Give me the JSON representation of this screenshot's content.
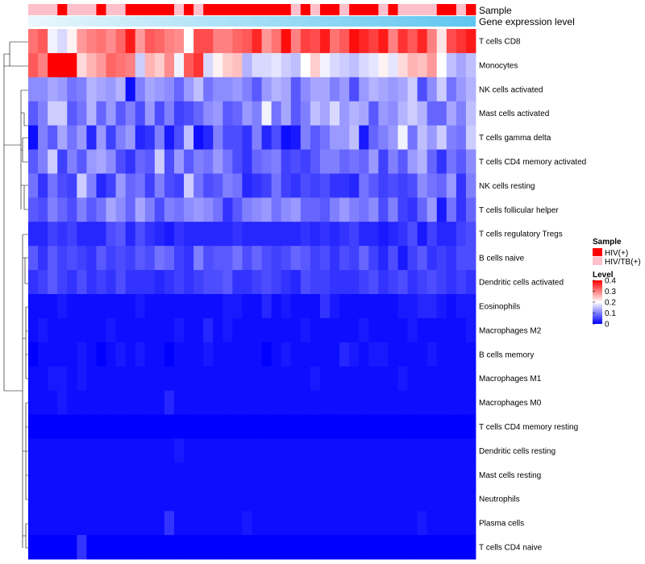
{
  "chart_data": {
    "type": "heatmap",
    "rows": [
      "T cells CD8",
      "Monocytes",
      "NK cells activated",
      "Mast cells activated",
      "T cells gamma delta",
      "T cells CD4 memory activated",
      "NK cells resting",
      "T cells follicular helper",
      "T cells regulatory  Tregs",
      "B cells naive",
      "Dendritic cells activated",
      "Eosinophils",
      "Macrophages M2",
      "B cells memory",
      "Macrophages M1",
      "Macrophages M0",
      "T cells CD4 memory resting",
      "Dendritic cells resting",
      "Mast cells resting",
      "Neutrophils",
      "Plasma cells",
      "T cells CD4 naive"
    ],
    "n_columns": 46,
    "annotations": [
      {
        "name": "Sample",
        "values_note": "per-column sample group"
      },
      {
        "name": "Gene expression level",
        "values_note": "per-column gradient light to sky blue"
      }
    ],
    "sample_groups": [
      "HIV(+)",
      "HIV/TB(+)"
    ],
    "sample_assignment": [
      1,
      1,
      1,
      0,
      1,
      1,
      1,
      0,
      1,
      1,
      0,
      0,
      0,
      0,
      0,
      1,
      0,
      1,
      0,
      0,
      0,
      0,
      0,
      0,
      0,
      0,
      0,
      1,
      0,
      1,
      0,
      0,
      1,
      0,
      0,
      0,
      1,
      0,
      1,
      1,
      1,
      1,
      0,
      0,
      1,
      0
    ],
    "legend_sample": {
      "title": "Sample",
      "items": [
        "HIV(+)",
        "HIV/TB(+)"
      ],
      "colors": [
        "#ff0000",
        "#ffc0cb"
      ]
    },
    "legend_level": {
      "title": "Level",
      "ticks": [
        "0.4",
        "0.3",
        "0.2",
        "0.1",
        "0"
      ],
      "tick_values": [
        0.4,
        0.3,
        0.2,
        0.1,
        0
      ],
      "range": [
        0,
        0.4
      ],
      "colors": [
        "#0000ff",
        "#ffffff",
        "#ff0000"
      ]
    },
    "values": [
      [
        0.31,
        0.33,
        0.19,
        0.17,
        0.21,
        0.28,
        0.3,
        0.31,
        0.29,
        0.32,
        0.38,
        0.28,
        0.33,
        0.32,
        0.3,
        0.29,
        0.2,
        0.34,
        0.34,
        0.3,
        0.3,
        0.32,
        0.33,
        0.37,
        0.28,
        0.31,
        0.39,
        0.3,
        0.35,
        0.34,
        0.38,
        0.31,
        0.33,
        0.39,
        0.37,
        0.35,
        0.38,
        0.3,
        0.36,
        0.33,
        0.37,
        0.3,
        0.22,
        0.34,
        0.36,
        0.38
      ],
      [
        0.33,
        0.3,
        0.4,
        0.4,
        0.4,
        0.23,
        0.26,
        0.28,
        0.32,
        0.31,
        0.3,
        0.16,
        0.26,
        0.24,
        0.29,
        0.19,
        0.33,
        0.36,
        0.17,
        0.21,
        0.24,
        0.25,
        0.14,
        0.17,
        0.17,
        0.18,
        0.16,
        0.15,
        0.2,
        0.24,
        0.19,
        0.17,
        0.16,
        0.15,
        0.17,
        0.18,
        0.21,
        0.18,
        0.23,
        0.26,
        0.25,
        0.28,
        0.2,
        0.15,
        0.13,
        0.15
      ],
      [
        0.11,
        0.11,
        0.13,
        0.12,
        0.09,
        0.1,
        0.14,
        0.13,
        0.12,
        0.14,
        0.01,
        0.1,
        0.13,
        0.12,
        0.11,
        0.08,
        0.12,
        0.15,
        0.09,
        0.11,
        0.11,
        0.12,
        0.1,
        0.07,
        0.12,
        0.14,
        0.13,
        0.07,
        0.11,
        0.13,
        0.13,
        0.1,
        0.12,
        0.06,
        0.12,
        0.14,
        0.13,
        0.12,
        0.13,
        0.16,
        0.06,
        0.11,
        0.16,
        0.09,
        0.12,
        0.14
      ],
      [
        0.07,
        0.1,
        0.16,
        0.16,
        0.07,
        0.09,
        0.14,
        0.08,
        0.12,
        0.07,
        0.1,
        0.06,
        0.12,
        0.06,
        0.1,
        0.05,
        0.06,
        0.08,
        0.11,
        0.12,
        0.07,
        0.08,
        0.12,
        0.1,
        0.19,
        0.09,
        0.13,
        0.07,
        0.1,
        0.15,
        0.13,
        0.17,
        0.12,
        0.14,
        0.13,
        0.07,
        0.12,
        0.11,
        0.14,
        0.16,
        0.14,
        0.08,
        0.08,
        0.13,
        0.1,
        0.15
      ],
      [
        0.01,
        0.1,
        0.07,
        0.13,
        0.09,
        0.12,
        0.03,
        0.12,
        0.05,
        0.1,
        0.12,
        0.03,
        0.04,
        0.1,
        0.02,
        0.06,
        0.15,
        0.01,
        0.03,
        0.1,
        0.06,
        0.06,
        0.04,
        0.1,
        0.03,
        0.06,
        0.01,
        0.02,
        0.1,
        0.07,
        0.09,
        0.12,
        0.12,
        0.15,
        0.02,
        0.08,
        0.1,
        0.12,
        0.19,
        0.09,
        0.15,
        0.12,
        0.16,
        0.1,
        0.09,
        0.16
      ],
      [
        0.07,
        0.1,
        0.16,
        0.05,
        0.1,
        0.07,
        0.12,
        0.13,
        0.11,
        0.06,
        0.04,
        0.08,
        0.07,
        0.16,
        0.06,
        0.12,
        0.07,
        0.1,
        0.09,
        0.12,
        0.09,
        0.06,
        0.04,
        0.08,
        0.09,
        0.1,
        0.05,
        0.06,
        0.05,
        0.07,
        0.1,
        0.1,
        0.08,
        0.09,
        0.08,
        0.12,
        0.05,
        0.1,
        0.07,
        0.12,
        0.14,
        0.08,
        0.04,
        0.09,
        0.07,
        0.11
      ],
      [
        0.09,
        0.04,
        0.09,
        0.06,
        0.05,
        0.16,
        0.1,
        0.03,
        0.05,
        0.12,
        0.08,
        0.09,
        0.05,
        0.1,
        0.06,
        0.05,
        0.16,
        0.09,
        0.06,
        0.07,
        0.1,
        0.09,
        0.03,
        0.04,
        0.05,
        0.09,
        0.05,
        0.04,
        0.06,
        0.05,
        0.06,
        0.04,
        0.04,
        0.03,
        0.09,
        0.07,
        0.05,
        0.06,
        0.05,
        0.06,
        0.11,
        0.09,
        0.08,
        0.12,
        0.04,
        0.1
      ],
      [
        0.07,
        0.06,
        0.1,
        0.08,
        0.06,
        0.1,
        0.07,
        0.09,
        0.13,
        0.11,
        0.08,
        0.13,
        0.1,
        0.06,
        0.1,
        0.09,
        0.11,
        0.12,
        0.11,
        0.09,
        0.04,
        0.07,
        0.1,
        0.11,
        0.12,
        0.09,
        0.11,
        0.12,
        0.08,
        0.08,
        0.07,
        0.1,
        0.12,
        0.1,
        0.09,
        0.11,
        0.06,
        0.1,
        0.05,
        0.04,
        0.08,
        0.12,
        0.02,
        0.09,
        0.04,
        0.08
      ],
      [
        0.03,
        0.03,
        0.05,
        0.04,
        0.05,
        0.03,
        0.03,
        0.03,
        0.06,
        0.07,
        0.03,
        0.06,
        0.04,
        0.03,
        0.02,
        0.04,
        0.03,
        0.03,
        0.03,
        0.03,
        0.03,
        0.04,
        0.03,
        0.03,
        0.03,
        0.03,
        0.03,
        0.03,
        0.04,
        0.03,
        0.04,
        0.03,
        0.04,
        0.05,
        0.03,
        0.03,
        0.02,
        0.03,
        0.04,
        0.06,
        0.02,
        0.05,
        0.03,
        0.03,
        0.05,
        0.06
      ],
      [
        0.07,
        0.04,
        0.07,
        0.05,
        0.06,
        0.05,
        0.04,
        0.07,
        0.05,
        0.06,
        0.05,
        0.07,
        0.06,
        0.09,
        0.08,
        0.05,
        0.04,
        0.1,
        0.06,
        0.07,
        0.07,
        0.09,
        0.06,
        0.08,
        0.06,
        0.05,
        0.06,
        0.08,
        0.07,
        0.05,
        0.06,
        0.04,
        0.06,
        0.05,
        0.08,
        0.05,
        0.03,
        0.06,
        0.02,
        0.05,
        0.07,
        0.04,
        0.05,
        0.04,
        0.06,
        0.06
      ],
      [
        0.04,
        0.05,
        0.07,
        0.05,
        0.04,
        0.06,
        0.04,
        0.05,
        0.04,
        0.06,
        0.04,
        0.04,
        0.04,
        0.03,
        0.04,
        0.05,
        0.04,
        0.05,
        0.06,
        0.06,
        0.07,
        0.04,
        0.04,
        0.05,
        0.06,
        0.05,
        0.04,
        0.03,
        0.06,
        0.05,
        0.05,
        0.04,
        0.04,
        0.04,
        0.05,
        0.06,
        0.04,
        0.05,
        0.06,
        0.04,
        0.05,
        0.06,
        0.05,
        0.04,
        0.05,
        0.04
      ],
      [
        0.01,
        0.01,
        0.01,
        0.02,
        0.01,
        0.01,
        0.01,
        0.01,
        0.01,
        0.01,
        0.01,
        0.02,
        0.01,
        0.01,
        0.01,
        0.01,
        0.01,
        0.01,
        0.01,
        0.01,
        0.02,
        0.02,
        0.01,
        0.01,
        0.03,
        0.01,
        0.02,
        0.01,
        0.01,
        0.01,
        0.04,
        0.02,
        0.01,
        0.01,
        0.01,
        0.01,
        0.01,
        0.01,
        0.02,
        0.02,
        0.03,
        0.03,
        0.02,
        0.01,
        0.02,
        0.02
      ],
      [
        0.01,
        0.02,
        0.01,
        0.01,
        0.01,
        0.01,
        0.01,
        0.01,
        0.02,
        0.01,
        0.01,
        0.01,
        0.01,
        0.01,
        0.01,
        0.02,
        0.01,
        0.01,
        0.03,
        0.01,
        0.02,
        0.01,
        0.01,
        0.01,
        0.01,
        0.01,
        0.01,
        0.01,
        0.02,
        0.01,
        0.01,
        0.01,
        0.01,
        0.01,
        0.02,
        0.01,
        0.01,
        0.01,
        0.01,
        0.02,
        0.01,
        0.01,
        0.01,
        0.01,
        0.01,
        0.02
      ],
      [
        0.0,
        0.01,
        0.01,
        0.01,
        0.01,
        0.02,
        0.01,
        0.0,
        0.01,
        0.02,
        0.01,
        0.02,
        0.01,
        0.01,
        0.0,
        0.01,
        0.01,
        0.01,
        0.02,
        0.01,
        0.01,
        0.01,
        0.01,
        0.01,
        0.0,
        0.01,
        0.02,
        0.01,
        0.01,
        0.01,
        0.01,
        0.01,
        0.03,
        0.02,
        0.01,
        0.02,
        0.02,
        0.01,
        0.01,
        0.01,
        0.01,
        0.02,
        0.01,
        0.01,
        0.01,
        0.01
      ],
      [
        0.01,
        0.01,
        0.02,
        0.02,
        0.01,
        0.02,
        0.01,
        0.01,
        0.01,
        0.01,
        0.01,
        0.01,
        0.01,
        0.01,
        0.01,
        0.01,
        0.01,
        0.01,
        0.01,
        0.01,
        0.01,
        0.01,
        0.01,
        0.01,
        0.01,
        0.01,
        0.01,
        0.01,
        0.01,
        0.02,
        0.01,
        0.01,
        0.01,
        0.01,
        0.01,
        0.01,
        0.01,
        0.01,
        0.02,
        0.01,
        0.01,
        0.01,
        0.01,
        0.01,
        0.01,
        0.01
      ],
      [
        0.01,
        0.01,
        0.01,
        0.02,
        0.01,
        0.01,
        0.01,
        0.01,
        0.01,
        0.01,
        0.01,
        0.01,
        0.01,
        0.01,
        0.03,
        0.01,
        0.01,
        0.01,
        0.01,
        0.01,
        0.01,
        0.01,
        0.01,
        0.01,
        0.01,
        0.01,
        0.01,
        0.01,
        0.01,
        0.01,
        0.01,
        0.01,
        0.01,
        0.01,
        0.01,
        0.01,
        0.01,
        0.01,
        0.01,
        0.01,
        0.01,
        0.01,
        0.01,
        0.01,
        0.01,
        0.01
      ],
      [
        0.0,
        0.0,
        0.0,
        0.0,
        0.0,
        0.0,
        0.0,
        0.0,
        0.0,
        0.0,
        0.0,
        0.0,
        0.0,
        0.0,
        0.0,
        0.0,
        0.0,
        0.0,
        0.0,
        0.0,
        0.0,
        0.0,
        0.0,
        0.0,
        0.0,
        0.0,
        0.0,
        0.0,
        0.0,
        0.0,
        0.0,
        0.0,
        0.0,
        0.0,
        0.0,
        0.0,
        0.0,
        0.0,
        0.0,
        0.0,
        0.0,
        0.0,
        0.0,
        0.0,
        0.0,
        0.0
      ],
      [
        0.01,
        0.01,
        0.01,
        0.01,
        0.01,
        0.01,
        0.01,
        0.01,
        0.01,
        0.01,
        0.01,
        0.01,
        0.01,
        0.01,
        0.01,
        0.02,
        0.01,
        0.01,
        0.01,
        0.01,
        0.01,
        0.01,
        0.01,
        0.01,
        0.01,
        0.01,
        0.01,
        0.01,
        0.01,
        0.01,
        0.01,
        0.01,
        0.01,
        0.01,
        0.01,
        0.01,
        0.01,
        0.01,
        0.01,
        0.01,
        0.01,
        0.01,
        0.01,
        0.01,
        0.01,
        0.01
      ],
      [
        0.01,
        0.01,
        0.01,
        0.01,
        0.01,
        0.01,
        0.01,
        0.01,
        0.01,
        0.01,
        0.01,
        0.01,
        0.01,
        0.01,
        0.01,
        0.01,
        0.01,
        0.01,
        0.01,
        0.01,
        0.01,
        0.01,
        0.01,
        0.01,
        0.01,
        0.01,
        0.01,
        0.01,
        0.01,
        0.01,
        0.01,
        0.01,
        0.01,
        0.01,
        0.01,
        0.01,
        0.01,
        0.01,
        0.01,
        0.01,
        0.01,
        0.01,
        0.01,
        0.01,
        0.01,
        0.01
      ],
      [
        0.01,
        0.01,
        0.01,
        0.01,
        0.01,
        0.01,
        0.01,
        0.01,
        0.01,
        0.01,
        0.01,
        0.01,
        0.01,
        0.01,
        0.01,
        0.01,
        0.01,
        0.01,
        0.01,
        0.01,
        0.01,
        0.01,
        0.01,
        0.01,
        0.01,
        0.01,
        0.01,
        0.01,
        0.01,
        0.01,
        0.01,
        0.01,
        0.01,
        0.01,
        0.01,
        0.01,
        0.01,
        0.01,
        0.01,
        0.01,
        0.01,
        0.01,
        0.01,
        0.01,
        0.01,
        0.01
      ],
      [
        0.01,
        0.01,
        0.01,
        0.01,
        0.01,
        0.01,
        0.01,
        0.01,
        0.01,
        0.01,
        0.01,
        0.01,
        0.01,
        0.01,
        0.04,
        0.01,
        0.01,
        0.01,
        0.01,
        0.01,
        0.01,
        0.01,
        0.02,
        0.01,
        0.01,
        0.01,
        0.01,
        0.01,
        0.01,
        0.01,
        0.01,
        0.01,
        0.01,
        0.01,
        0.01,
        0.01,
        0.01,
        0.01,
        0.01,
        0.01,
        0.02,
        0.01,
        0.01,
        0.01,
        0.01,
        0.01
      ],
      [
        0.0,
        0.0,
        0.0,
        0.0,
        0.0,
        0.04,
        0.0,
        0.0,
        0.0,
        0.0,
        0.0,
        0.0,
        0.0,
        0.0,
        0.0,
        0.0,
        0.0,
        0.0,
        0.0,
        0.0,
        0.0,
        0.0,
        0.0,
        0.0,
        0.0,
        0.0,
        0.0,
        0.0,
        0.0,
        0.0,
        0.0,
        0.0,
        0.0,
        0.0,
        0.0,
        0.0,
        0.0,
        0.0,
        0.0,
        0.0,
        0.0,
        0.0,
        0.0,
        0.0,
        0.0,
        0.0
      ]
    ]
  }
}
